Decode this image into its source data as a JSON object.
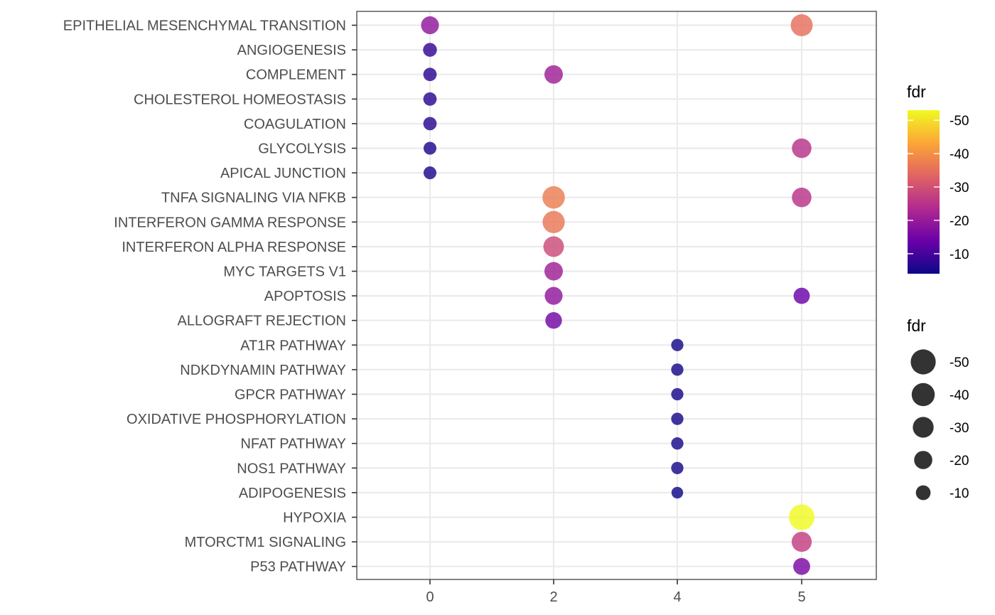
{
  "chart_data": {
    "type": "scatter",
    "title": "",
    "xlabel": "",
    "ylabel": "",
    "x_ticks": [
      "0",
      "2",
      "4",
      "5"
    ],
    "categories": [
      "EPITHELIAL MESENCHYMAL TRANSITION",
      "ANGIOGENESIS",
      "COMPLEMENT",
      "CHOLESTEROL HOMEOSTASIS",
      "COAGULATION",
      "GLYCOLYSIS",
      "APICAL JUNCTION",
      "TNFA SIGNALING VIA NFKB",
      "INTERFERON GAMMA RESPONSE",
      "INTERFERON ALPHA RESPONSE",
      "MYC TARGETS V1",
      "APOPTOSIS",
      "ALLOGRAFT REJECTION",
      "AT1R PATHWAY",
      "NDKDYNAMIN PATHWAY",
      "GPCR PATHWAY",
      "OXIDATIVE PHOSPHORYLATION",
      "NFAT PATHWAY",
      "NOS1 PATHWAY",
      "ADIPOGENESIS",
      "HYPOXIA",
      "MTORCTM1 SIGNALING",
      "P53 PATHWAY"
    ],
    "points": [
      {
        "x": "0",
        "y": "EPITHELIAL MESENCHYMAL TRANSITION",
        "fdr": -19
      },
      {
        "x": "0",
        "y": "ANGIOGENESIS",
        "fdr": -8
      },
      {
        "x": "0",
        "y": "COMPLEMENT",
        "fdr": -7
      },
      {
        "x": "0",
        "y": "CHOLESTEROL HOMEOSTASIS",
        "fdr": -7
      },
      {
        "x": "0",
        "y": "COAGULATION",
        "fdr": -7
      },
      {
        "x": "0",
        "y": "GLYCOLYSIS",
        "fdr": -6
      },
      {
        "x": "0",
        "y": "APICAL JUNCTION",
        "fdr": -6
      },
      {
        "x": "2",
        "y": "COMPLEMENT",
        "fdr": -21
      },
      {
        "x": "2",
        "y": "TNFA SIGNALING VIA NFKB",
        "fdr": -37
      },
      {
        "x": "2",
        "y": "INTERFERON GAMMA RESPONSE",
        "fdr": -36
      },
      {
        "x": "2",
        "y": "INTERFERON ALPHA RESPONSE",
        "fdr": -29
      },
      {
        "x": "2",
        "y": "MYC TARGETS V1",
        "fdr": -21
      },
      {
        "x": "2",
        "y": "APOPTOSIS",
        "fdr": -19
      },
      {
        "x": "2",
        "y": "ALLOGRAFT REJECTION",
        "fdr": -15
      },
      {
        "x": "4",
        "y": "AT1R PATHWAY",
        "fdr": -5
      },
      {
        "x": "4",
        "y": "NDKDYNAMIN PATHWAY",
        "fdr": -5
      },
      {
        "x": "4",
        "y": "GPCR PATHWAY",
        "fdr": -5
      },
      {
        "x": "4",
        "y": "OXIDATIVE PHOSPHORYLATION",
        "fdr": -5
      },
      {
        "x": "4",
        "y": "NFAT PATHWAY",
        "fdr": -5
      },
      {
        "x": "4",
        "y": "NOS1 PATHWAY",
        "fdr": -5
      },
      {
        "x": "4",
        "y": "ADIPOGENESIS",
        "fdr": -4
      },
      {
        "x": "5",
        "y": "EPITHELIAL MESENCHYMAL TRANSITION",
        "fdr": -35
      },
      {
        "x": "5",
        "y": "GLYCOLYSIS",
        "fdr": -25
      },
      {
        "x": "5",
        "y": "TNFA SIGNALING VIA NFKB",
        "fdr": -25
      },
      {
        "x": "5",
        "y": "APOPTOSIS",
        "fdr": -14
      },
      {
        "x": "5",
        "y": "HYPOXIA",
        "fdr": -53
      },
      {
        "x": "5",
        "y": "MTORCTM1 SIGNALING",
        "fdr": -27
      },
      {
        "x": "5",
        "y": "P53 PATHWAY",
        "fdr": -16
      }
    ],
    "color_legend": {
      "title": "fdr",
      "ticks": [
        "-50",
        "-40",
        "-30",
        "-20",
        "-10"
      ],
      "tick_values": [
        -50,
        -40,
        -30,
        -20,
        -10
      ],
      "range": [
        -53,
        -4
      ],
      "palette": [
        "#0d0887",
        "#6a00a8",
        "#b12a90",
        "#e16462",
        "#fca636",
        "#f0f921"
      ]
    },
    "size_legend": {
      "title": "fdr",
      "labels": [
        "-50",
        "-40",
        "-30",
        "-20",
        "-10"
      ],
      "values": [
        -50,
        -40,
        -30,
        -20,
        -10
      ]
    },
    "grid": true,
    "legend_position": "right"
  }
}
